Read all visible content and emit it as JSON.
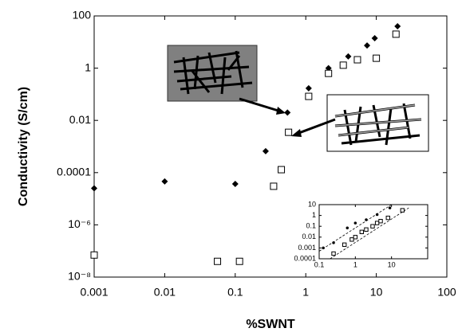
{
  "chart_data": [
    {
      "type": "scatter",
      "x_label": "%SWNT",
      "y_label": "Conductivity (S/cm)",
      "log_x": true,
      "log_y": true,
      "xlim": [
        0.001,
        100
      ],
      "ylim": [
        1e-08,
        100
      ],
      "xticks": [
        0.001,
        0.01,
        0.1,
        1,
        10,
        100
      ],
      "yticks": [
        {
          "value": 1e-08,
          "label": "10⁻⁸"
        },
        {
          "value": 1e-06,
          "label": "10⁻⁶"
        },
        0.0001,
        0.01,
        1,
        100
      ],
      "series": [
        {
          "marker": "diamond",
          "color": "#000000",
          "x": [
            0.001,
            0.01,
            0.1,
            0.27,
            0.55,
            1.1,
            2.1,
            4,
            7.4,
            9.5,
            20
          ],
          "values": [
            2.5e-05,
            4.6e-05,
            3.7e-05,
            0.00066,
            0.02,
            0.17,
            1.0,
            2.8,
            7.4,
            14,
            40
          ]
        },
        {
          "marker": "square",
          "color": "#000000",
          "x": [
            0.001,
            0.056,
            0.115,
            0.35,
            0.45,
            0.57,
            1.1,
            2.1,
            3.4,
            5.4,
            10,
            19
          ],
          "values": [
            7e-08,
            4e-08,
            4e-08,
            3e-05,
            0.00013,
            0.0035,
            0.083,
            0.63,
            1.3,
            2.1,
            2.4,
            20
          ]
        }
      ]
    },
    {
      "type": "scatter",
      "log_x": true,
      "log_y": true,
      "xlim": [
        0.1,
        100
      ],
      "ylim": [
        0.0001,
        10
      ],
      "xticks": [
        0.1,
        1,
        10
      ],
      "yticks": [
        0.0001,
        0.001,
        0.01,
        0.1,
        1,
        10
      ],
      "series": [
        {
          "marker": "dot",
          "color": "#000000",
          "x": [
            0.13,
            0.25,
            0.6,
            1,
            2,
            4,
            9
          ],
          "values": [
            0.001,
            0.003,
            0.07,
            0.2,
            0.4,
            1.2,
            5
          ]
        },
        {
          "marker": "square",
          "color": "#000000",
          "x": [
            0.25,
            0.5,
            0.8,
            1,
            1.5,
            2,
            3,
            4,
            5,
            8,
            20
          ],
          "values": [
            0.0003,
            0.002,
            0.006,
            0.01,
            0.03,
            0.05,
            0.1,
            0.2,
            0.3,
            0.6,
            3
          ]
        }
      ],
      "fit_lines": [
        {
          "x": [
            0.1,
            10
          ],
          "values": [
            0.0005,
            10
          ]
        },
        {
          "x": [
            0.2,
            30
          ],
          "values": [
            0.0001,
            5
          ]
        }
      ]
    }
  ]
}
